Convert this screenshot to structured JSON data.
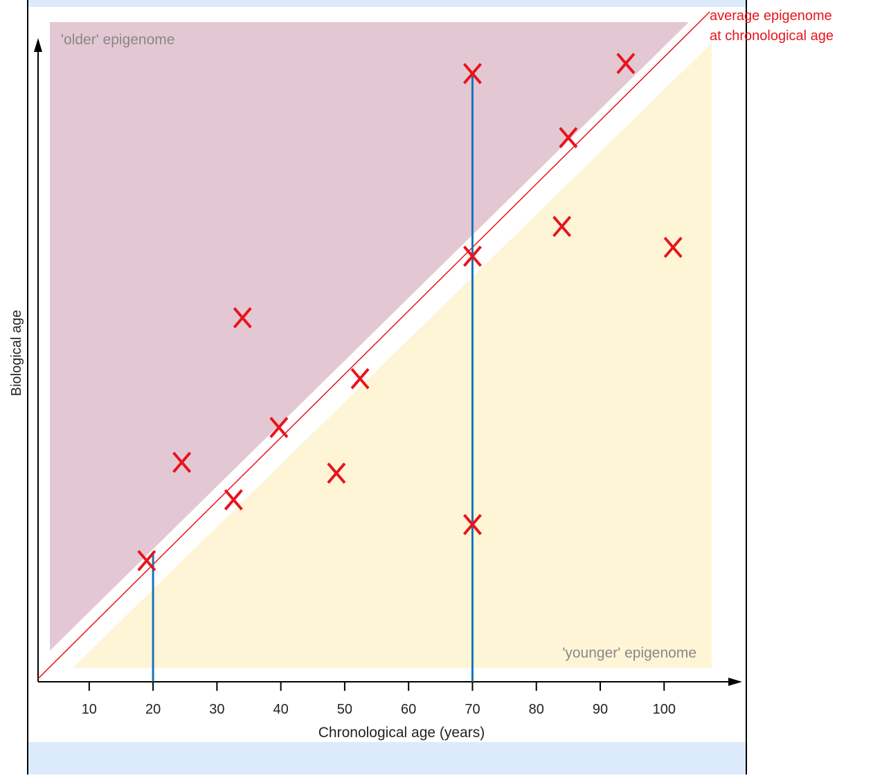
{
  "chart_data": {
    "type": "scatter",
    "xlabel": "Chronological age (years)",
    "ylabel": "Biological age",
    "region_labels": [
      "'older' epigenome",
      "'younger' epigenome"
    ],
    "annotation_lines": [
      "average epigenome",
      "at chronological age"
    ],
    "x": [
      70,
      94,
      85,
      84,
      101.4,
      70,
      34,
      52.4,
      39.7,
      24.5,
      48.7,
      32.6,
      70,
      19
    ],
    "series": [
      {
        "color": "#e8141c",
        "values": [
          97.4,
          99,
          87.3,
          73.3,
          70,
          68.6,
          58.9,
          49.3,
          41.6,
          36.1,
          34.4,
          30.2,
          26.3,
          20.6
        ]
      }
    ],
    "vertical_lines": [
      {
        "x": 20,
        "to": 22
      },
      {
        "x": 70,
        "to": 97
      }
    ],
    "vertical_line_color": "#1a73b8",
    "diagonal_color": "#e8141c",
    "xlim": [
      2,
      112
    ],
    "ylim": [
      1.5,
      103
    ],
    "xticks": [
      10,
      20,
      30,
      40,
      50,
      60,
      70,
      80,
      90,
      100
    ]
  }
}
